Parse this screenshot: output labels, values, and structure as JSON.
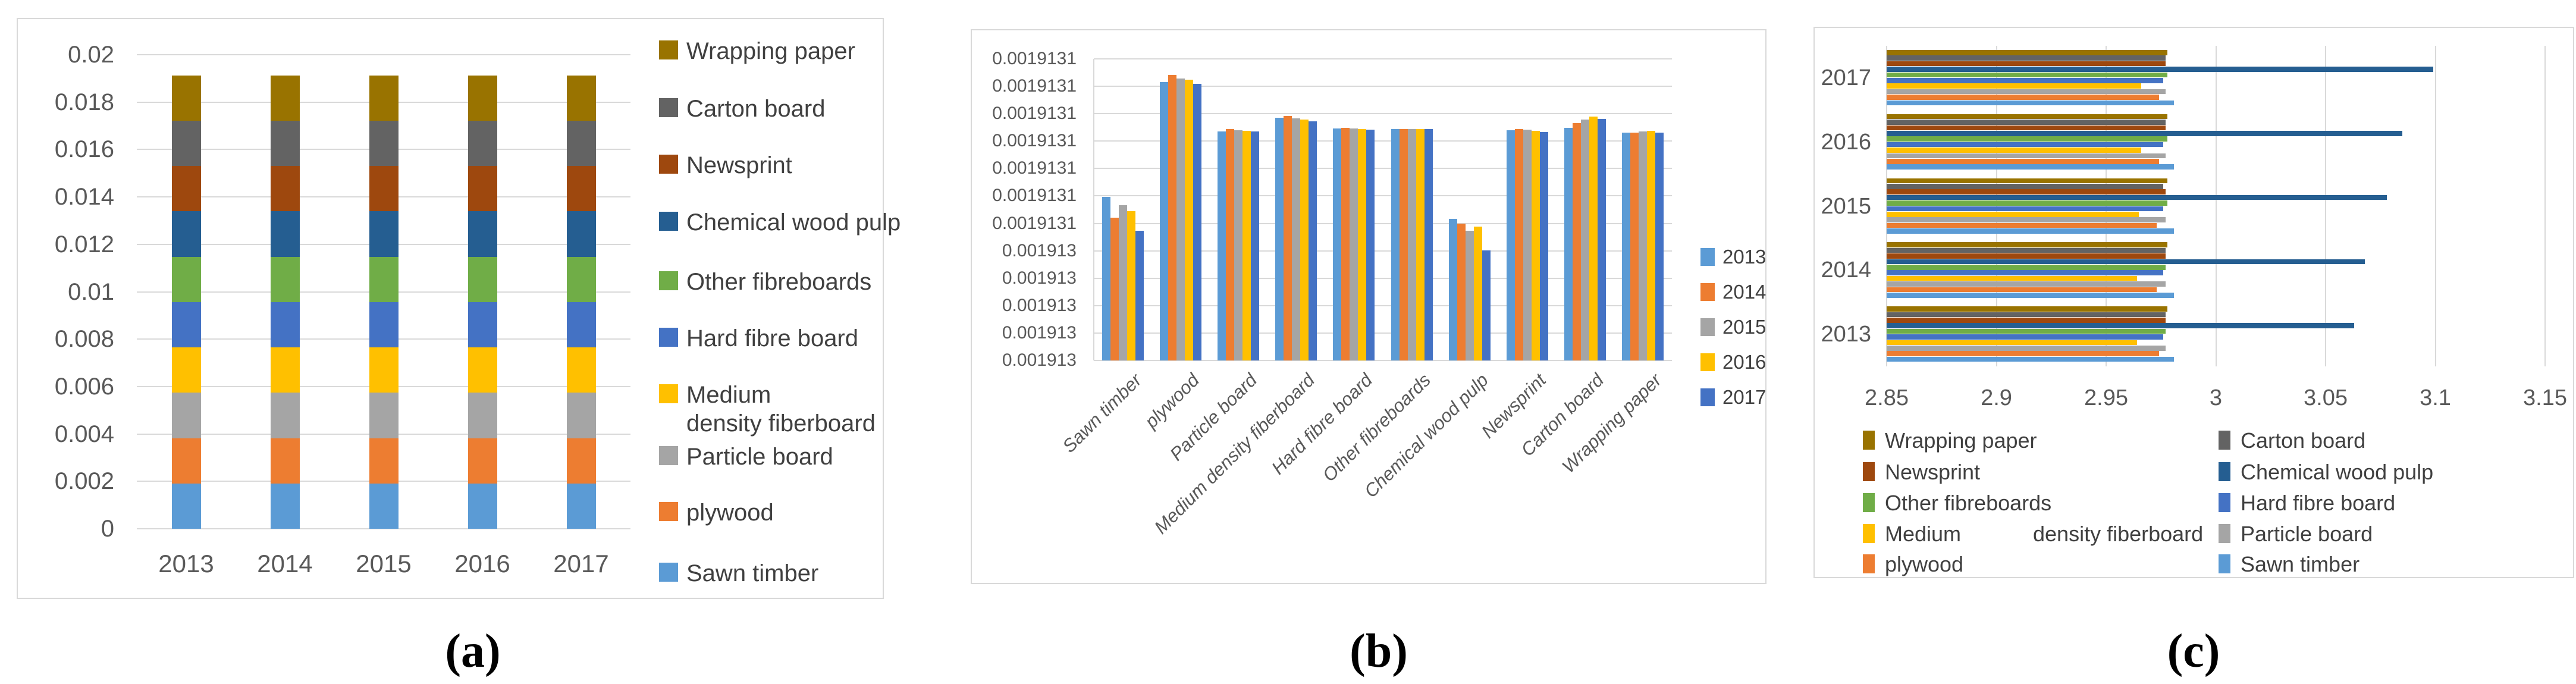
{
  "figure": {
    "captions": {
      "a": "(a)",
      "b": "(b)",
      "c": "(c)"
    }
  },
  "palette": {
    "Sawn timber": "#5B9BD5",
    "plywood": "#ED7D31",
    "Particle board": "#A5A5A5",
    "Medium density fiberboard": "#FFC000",
    "Hard fibre board": "#4472C4",
    "Other fibreboards": "#70AD47",
    "Chemical wood pulp": "#255E91",
    "Newsprint": "#9E480E",
    "Carton board": "#636363",
    "Wrapping paper": "#997300"
  },
  "year_palette": {
    "2013": "#5B9BD5",
    "2014": "#ED7D31",
    "2015": "#A5A5A5",
    "2016": "#FFC000",
    "2017": "#4472C4"
  },
  "chart_data": [
    {
      "id": "a",
      "type": "bar",
      "stacked": true,
      "title": "",
      "xlabel": "",
      "ylabel": "",
      "categories": [
        "2013",
        "2014",
        "2015",
        "2016",
        "2017"
      ],
      "ylim": [
        0,
        0.02
      ],
      "yticks_top_to_bottom": [
        "0.02",
        "0.018",
        "0.016",
        "0.014",
        "0.012",
        "0.01",
        "0.008",
        "0.006",
        "0.004",
        "0.002",
        "0"
      ],
      "grid": true,
      "legend_position": "right",
      "series_bottom_to_top": [
        {
          "name": "Sawn timber",
          "values": [
            0.0019131,
            0.0019131,
            0.0019131,
            0.0019131,
            0.0019131
          ]
        },
        {
          "name": "plywood",
          "values": [
            0.0019131,
            0.0019131,
            0.0019131,
            0.0019131,
            0.0019131
          ]
        },
        {
          "name": "Particle board",
          "values": [
            0.0019131,
            0.0019131,
            0.0019131,
            0.0019131,
            0.0019131
          ]
        },
        {
          "name": "Medium density fiberboard",
          "values": [
            0.0019131,
            0.0019131,
            0.0019131,
            0.0019131,
            0.0019131
          ]
        },
        {
          "name": "Hard fibre board",
          "values": [
            0.0019131,
            0.0019131,
            0.0019131,
            0.0019131,
            0.0019131
          ]
        },
        {
          "name": "Other fibreboards",
          "values": [
            0.0019131,
            0.0019131,
            0.0019131,
            0.0019131,
            0.0019131
          ]
        },
        {
          "name": "Chemical wood pulp",
          "values": [
            0.0019131,
            0.0019131,
            0.0019131,
            0.0019131,
            0.0019131
          ]
        },
        {
          "name": "Newsprint",
          "values": [
            0.0019131,
            0.0019131,
            0.0019131,
            0.0019131,
            0.0019131
          ]
        },
        {
          "name": "Carton board",
          "values": [
            0.0019131,
            0.0019131,
            0.0019131,
            0.0019131,
            0.0019131
          ]
        },
        {
          "name": "Wrapping paper",
          "values": [
            0.0019131,
            0.0019131,
            0.0019131,
            0.0019131,
            0.0019131
          ]
        }
      ],
      "legend_top_to_bottom": [
        {
          "label": "Wrapping paper"
        },
        {
          "label": "Carton board"
        },
        {
          "label": "Newsprint"
        },
        {
          "label": "Chemical wood pulp"
        },
        {
          "label": "Other fibreboards"
        },
        {
          "label": "Hard fibre board"
        },
        {
          "label": "Medium density fiberboard",
          "lines": [
            "Medium",
            "density fiberboard"
          ]
        },
        {
          "label": "Particle board"
        },
        {
          "label": "plywood"
        },
        {
          "label": "Sawn timber"
        }
      ]
    },
    {
      "id": "b",
      "type": "bar",
      "grouped": true,
      "title": "",
      "xlabel": "",
      "ylabel": "",
      "categories": [
        "Sawn timber",
        "plywood",
        "Particle board",
        "Medium density fiberboard",
        "Hard fibre board",
        "Other fibreboards",
        "Chemical wood pulp",
        "Newsprint",
        "Carton board",
        "Wrapping paper"
      ],
      "ylim": [
        0.001913,
        0.00191311
      ],
      "yticks_top_to_bottom": [
        "0.0019131",
        "0.0019131",
        "0.0019131",
        "0.0019131",
        "0.0019131",
        "0.0019131",
        "0.0019131",
        "0.001913",
        "0.001913",
        "0.001913",
        "0.001913",
        "0.001913"
      ],
      "grid": true,
      "legend_position": "right",
      "series": [
        {
          "name": "2013",
          "values": [
            0.0019130596,
            0.0019131016,
            0.0019130836,
            0.0019130886,
            0.0019130847,
            0.0019130843,
            0.0019130517,
            0.0019130839,
            0.0019130849,
            0.0019130832
          ]
        },
        {
          "name": "2014",
          "values": [
            0.0019130521,
            0.0019131042,
            0.0019130843,
            0.0019130892,
            0.0019130849,
            0.0019130843,
            0.0019130499,
            0.0019130845,
            0.0019130866,
            0.001913083
          ]
        },
        {
          "name": "2015",
          "values": [
            0.0019130566,
            0.0019131029,
            0.001913084,
            0.0019130883,
            0.0019130846,
            0.0019130843,
            0.0019130472,
            0.0019130841,
            0.0019130878,
            0.0019130836
          ]
        },
        {
          "name": "2016",
          "values": [
            0.0019130545,
            0.0019131023,
            0.0019130838,
            0.0019130879,
            0.0019130844,
            0.0019130843,
            0.0019130489,
            0.0019130838,
            0.0019130889,
            0.0019130838
          ]
        },
        {
          "name": "2017",
          "values": [
            0.0019130472,
            0.0019131008,
            0.0019130836,
            0.0019130873,
            0.0019130842,
            0.0019130843,
            0.0019130401,
            0.0019130834,
            0.001913088,
            0.0019130832
          ]
        }
      ]
    },
    {
      "id": "c",
      "type": "bar",
      "horizontal": true,
      "grouped": true,
      "title": "",
      "xlabel": "",
      "ylabel": "",
      "categories_top_to_bottom": [
        "2017",
        "2016",
        "2015",
        "2014",
        "2013"
      ],
      "xlim": [
        2.85,
        3.15
      ],
      "xticks": [
        "2.85",
        "2.9",
        "2.95",
        "3",
        "3.05",
        "3.1",
        "3.15"
      ],
      "grid": true,
      "legend_position": "bottom",
      "series_top_to_bottom_in_group": [
        {
          "name": "Wrapping paper",
          "values": [
            2.978,
            2.978,
            2.978,
            2.978,
            2.978
          ]
        },
        {
          "name": "Carton board",
          "values": [
            2.977,
            2.977,
            2.976,
            2.977,
            2.977
          ]
        },
        {
          "name": "Newsprint",
          "values": [
            2.977,
            2.977,
            2.977,
            2.977,
            2.977
          ]
        },
        {
          "name": "Chemical wood pulp",
          "values": [
            3.099,
            3.085,
            3.078,
            3.068,
            3.063
          ]
        },
        {
          "name": "Other fibreboards",
          "values": [
            2.978,
            2.978,
            2.978,
            2.977,
            2.977
          ]
        },
        {
          "name": "Hard fibre board",
          "values": [
            2.976,
            2.976,
            2.976,
            2.976,
            2.976
          ]
        },
        {
          "name": "Medium density fiberboard",
          "values": [
            2.966,
            2.966,
            2.965,
            2.964,
            2.964
          ]
        },
        {
          "name": "Particle board",
          "values": [
            2.977,
            2.977,
            2.977,
            2.977,
            2.977
          ]
        },
        {
          "name": "plywood",
          "values": [
            2.974,
            2.974,
            2.973,
            2.973,
            2.974
          ]
        },
        {
          "name": "Sawn timber",
          "values": [
            2.981,
            2.981,
            2.981,
            2.981,
            2.981
          ]
        }
      ],
      "legend_columns": [
        [
          {
            "label": "Wrapping paper"
          },
          {
            "label": "Newsprint"
          },
          {
            "label": "Other fibreboards"
          },
          {
            "label": "Medium density fiberboard",
            "split": [
              "Medium",
              "density fiberboard"
            ]
          },
          {
            "label": "plywood"
          }
        ],
        [
          {
            "label": "Carton board"
          },
          {
            "label": "Chemical wood pulp"
          },
          {
            "label": "Hard fibre board"
          },
          {
            "label": "Particle board"
          },
          {
            "label": "Sawn timber"
          }
        ]
      ]
    }
  ]
}
